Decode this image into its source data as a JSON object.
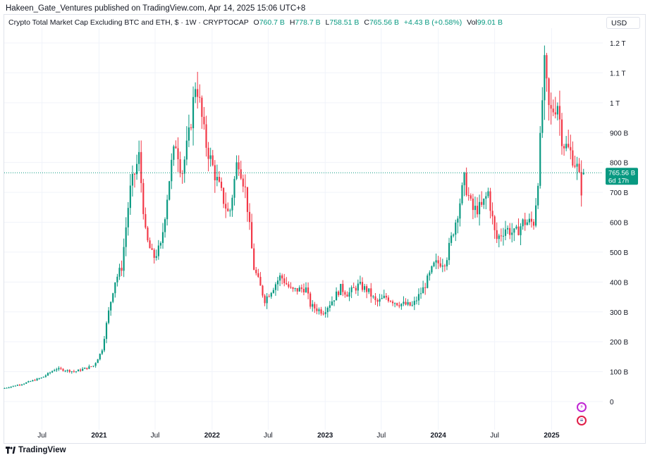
{
  "header": {
    "publisher": "Hakeen_Gate_Ventures published on TradingView.com, Apr 14, 2025 15:06 UTC+8"
  },
  "legend": {
    "title": "Crypto Total Market Cap Excluding BTC and ETH, $ · 1W · CRYPTOCAP",
    "o_label": "O",
    "o_value": "760.7 B",
    "h_label": "H",
    "h_value": "778.7 B",
    "l_label": "L",
    "l_value": "758.51 B",
    "c_label": "C",
    "c_value": "765.56 B",
    "change": "+4.43 B (+0.58%)",
    "vol_label": "Vol",
    "vol_value": "99.01 B"
  },
  "currency": "USD",
  "price_tag": {
    "price": "765.56 B",
    "countdown": "6d 17h"
  },
  "footer": {
    "brand": "TradingView"
  },
  "icons": {
    "brand": "tradingview-logo-icon",
    "bolt": "lightning-badge-icon",
    "flag": "us-flag-badge-icon"
  },
  "colors": {
    "up": "#089981",
    "down": "#f23645",
    "grid": "#f0f3fa",
    "text": "#131722"
  },
  "chart_data": {
    "type": "candlestick",
    "interval": "1W",
    "y_unit": "USD",
    "ylim": [
      0,
      1200000000000
    ],
    "y_ticks": [
      {
        "v": 0,
        "label": "0"
      },
      {
        "v": 100,
        "label": "100 B"
      },
      {
        "v": 200,
        "label": "200 B"
      },
      {
        "v": 300,
        "label": "300 B"
      },
      {
        "v": 400,
        "label": "400 B"
      },
      {
        "v": 500,
        "label": "500 B"
      },
      {
        "v": 600,
        "label": "600 B"
      },
      {
        "v": 700,
        "label": "700 B"
      },
      {
        "v": 800,
        "label": "800 B"
      },
      {
        "v": 900,
        "label": "900 B"
      },
      {
        "v": 1000,
        "label": "1 T"
      },
      {
        "v": 1100,
        "label": "1.1 T"
      },
      {
        "v": 1200,
        "label": "1.2 T"
      }
    ],
    "x_ticks": [
      {
        "t": "2020-07-01",
        "label": "Jul",
        "bold": false
      },
      {
        "t": "2021-01-01",
        "label": "2021",
        "bold": true
      },
      {
        "t": "2021-07-01",
        "label": "Jul",
        "bold": false
      },
      {
        "t": "2022-01-01",
        "label": "2022",
        "bold": true
      },
      {
        "t": "2022-07-01",
        "label": "Jul",
        "bold": false
      },
      {
        "t": "2023-01-01",
        "label": "2023",
        "bold": true
      },
      {
        "t": "2023-07-01",
        "label": "Jul",
        "bold": false
      },
      {
        "t": "2024-01-01",
        "label": "2024",
        "bold": true
      },
      {
        "t": "2024-07-01",
        "label": "Jul",
        "bold": false
      },
      {
        "t": "2025-01-01",
        "label": "2025",
        "bold": true
      }
    ],
    "xlim": [
      "2020-03-01",
      "2025-06-15"
    ],
    "close_path": [
      [
        "2020-03-02",
        45
      ],
      [
        "2020-05-01",
        60
      ],
      [
        "2020-07-01",
        80
      ],
      [
        "2020-08-15",
        110
      ],
      [
        "2020-10-15",
        100
      ],
      [
        "2020-12-15",
        120
      ],
      [
        "2021-01-10",
        170
      ],
      [
        "2021-02-01",
        300
      ],
      [
        "2021-02-20",
        400
      ],
      [
        "2021-03-15",
        450
      ],
      [
        "2021-04-10",
        700
      ],
      [
        "2021-05-10",
        820
      ],
      [
        "2021-06-01",
        550
      ],
      [
        "2021-06-25",
        480
      ],
      [
        "2021-07-20",
        520
      ],
      [
        "2021-08-20",
        780
      ],
      [
        "2021-09-07",
        870
      ],
      [
        "2021-09-25",
        760
      ],
      [
        "2021-10-20",
        900
      ],
      [
        "2021-11-10",
        1080
      ],
      [
        "2021-12-10",
        870
      ],
      [
        "2022-01-10",
        760
      ],
      [
        "2022-02-05",
        680
      ],
      [
        "2022-02-25",
        620
      ],
      [
        "2022-03-25",
        820
      ],
      [
        "2022-04-20",
        700
      ],
      [
        "2022-05-15",
        450
      ],
      [
        "2022-06-20",
        340
      ],
      [
        "2022-08-10",
        420
      ],
      [
        "2022-09-15",
        370
      ],
      [
        "2022-10-30",
        380
      ],
      [
        "2022-11-15",
        320
      ],
      [
        "2022-12-25",
        300
      ],
      [
        "2023-01-25",
        340
      ],
      [
        "2023-02-20",
        380
      ],
      [
        "2023-03-15",
        360
      ],
      [
        "2023-04-20",
        390
      ],
      [
        "2023-05-20",
        370
      ],
      [
        "2023-06-15",
        330
      ],
      [
        "2023-07-15",
        350
      ],
      [
        "2023-08-20",
        330
      ],
      [
        "2023-10-10",
        320
      ],
      [
        "2023-11-15",
        380
      ],
      [
        "2023-12-20",
        460
      ],
      [
        "2024-01-25",
        470
      ],
      [
        "2024-03-01",
        620
      ],
      [
        "2024-03-25",
        740
      ],
      [
        "2024-04-20",
        640
      ],
      [
        "2024-05-20",
        650
      ],
      [
        "2024-06-10",
        700
      ],
      [
        "2024-07-05",
        540
      ],
      [
        "2024-08-05",
        580
      ],
      [
        "2024-09-05",
        560
      ],
      [
        "2024-10-01",
        600
      ],
      [
        "2024-11-05",
        600
      ],
      [
        "2024-11-20",
        770
      ],
      [
        "2024-12-08",
        1130
      ],
      [
        "2024-12-25",
        960
      ],
      [
        "2025-01-20",
        1000
      ],
      [
        "2025-02-05",
        870
      ],
      [
        "2025-03-05",
        830
      ],
      [
        "2025-03-25",
        780
      ],
      [
        "2025-04-07",
        710
      ],
      [
        "2025-04-14",
        765.56
      ]
    ],
    "last_candle": {
      "open": 760.7,
      "high": 778.7,
      "low": 758.51,
      "close": 765.56,
      "volume": 99.01
    }
  }
}
